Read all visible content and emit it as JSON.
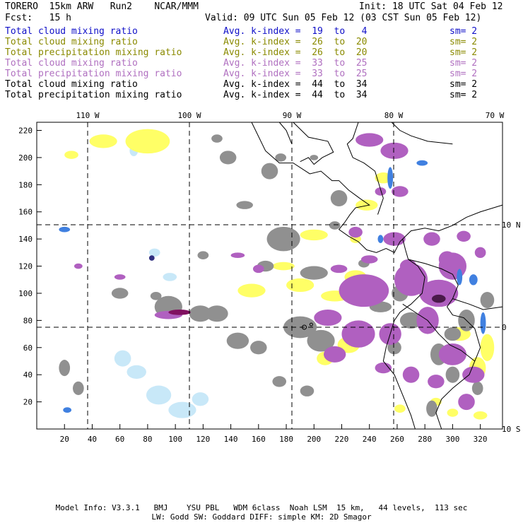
{
  "header": {
    "model": "TORERO  15km ARW   Run2    NCAR/MMM",
    "init": "Init: 18 UTC Sat 04 Feb 12",
    "fcst": "Fcst:   15 h",
    "valid": "Valid: 09 UTC Sun 05 Feb 12 (03 CST Sun 05 Feb 12)"
  },
  "legend": [
    {
      "field": "Total cloud mixing ratio",
      "stat": "Avg. k-index =  19  to   4",
      "sm": "sm= 2",
      "color": "#1010c8"
    },
    {
      "field": "Total cloud mixing ratio",
      "stat": "Avg. k-index =  26  to  20",
      "sm": "sm= 2",
      "color": "#8a8a00"
    },
    {
      "field": "Total precipitation mixing ratio",
      "stat": "Avg. k-index =  26  to  20",
      "sm": "sm= 2",
      "color": "#8a8a00"
    },
    {
      "field": "Total cloud mixing ratio",
      "stat": "Avg. k-index =  33  to  25",
      "sm": "sm= 2",
      "color": "#b070c0"
    },
    {
      "field": "Total precipitation mixing ratio",
      "stat": "Avg. k-index =  33  to  25",
      "sm": "sm= 2",
      "color": "#b070c0"
    },
    {
      "field": "Total cloud mixing ratio",
      "stat": "Avg. k-index =  44  to  34",
      "sm": "sm= 2",
      "color": "#000000"
    },
    {
      "field": "Total precipitation mixing ratio",
      "stat": "Avg. k-index =  44  to  34",
      "sm": "sm= 2",
      "color": "#000000"
    }
  ],
  "map": {
    "lon_labels": [
      "110 W",
      "100 W",
      "90 W",
      "80 W",
      "70 W"
    ],
    "lat_labels": [
      "10 N",
      "0",
      "10 S"
    ],
    "x_ticks": [
      "20",
      "40",
      "60",
      "80",
      "100",
      "120",
      "140",
      "160",
      "180",
      "200",
      "220",
      "240",
      "260",
      "280",
      "300",
      "320"
    ],
    "y_ticks": [
      "20",
      "40",
      "60",
      "80",
      "100",
      "120",
      "140",
      "160",
      "180",
      "200",
      "220"
    ],
    "colors": {
      "yellow": "#ffff66",
      "purple": "#b060c0",
      "gray": "#909090",
      "lightblue": "#c8e8f8",
      "blue": "#4080e0",
      "darkpurple": "#801060"
    }
  },
  "footer": {
    "line1": "Model Info: V3.3.1   BMJ    YSU PBL   WDM 6class  Noah LSM  15 km,   44 levels,  113 sec",
    "line2": "LW: Godd SW: Goddard DIFF: simple KM: 2D Smagor"
  }
}
